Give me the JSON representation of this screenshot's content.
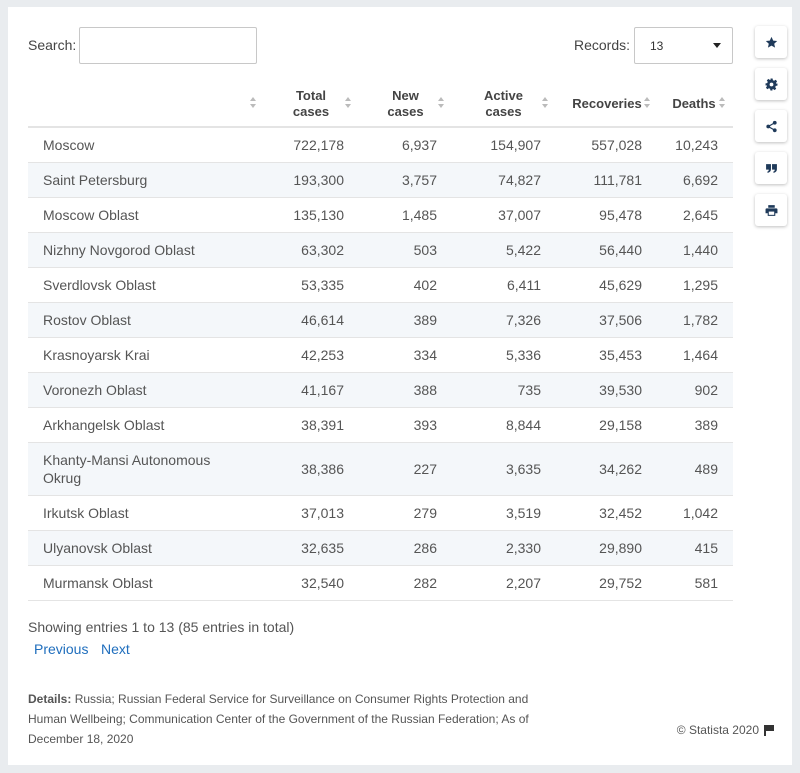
{
  "search": {
    "label": "Search:",
    "value": "",
    "placeholder": ""
  },
  "records": {
    "label": "Records:",
    "value": "13"
  },
  "columns": {
    "region": "",
    "total_cases": "Total cases",
    "new_cases": "New cases",
    "active_cases": "Active cases",
    "recoveries": "Recoveries",
    "deaths": "Deaths"
  },
  "rows": [
    {
      "region": "Moscow",
      "total": "722,178",
      "new": "6,937",
      "active": "154,907",
      "recoveries": "557,028",
      "deaths": "10,243"
    },
    {
      "region": "Saint Petersburg",
      "total": "193,300",
      "new": "3,757",
      "active": "74,827",
      "recoveries": "111,781",
      "deaths": "6,692"
    },
    {
      "region": "Moscow Oblast",
      "total": "135,130",
      "new": "1,485",
      "active": "37,007",
      "recoveries": "95,478",
      "deaths": "2,645"
    },
    {
      "region": "Nizhny Novgorod Oblast",
      "total": "63,302",
      "new": "503",
      "active": "5,422",
      "recoveries": "56,440",
      "deaths": "1,440"
    },
    {
      "region": "Sverdlovsk Oblast",
      "total": "53,335",
      "new": "402",
      "active": "6,411",
      "recoveries": "45,629",
      "deaths": "1,295"
    },
    {
      "region": "Rostov Oblast",
      "total": "46,614",
      "new": "389",
      "active": "7,326",
      "recoveries": "37,506",
      "deaths": "1,782"
    },
    {
      "region": "Krasnoyarsk Krai",
      "total": "42,253",
      "new": "334",
      "active": "5,336",
      "recoveries": "35,453",
      "deaths": "1,464"
    },
    {
      "region": "Voronezh Oblast",
      "total": "41,167",
      "new": "388",
      "active": "735",
      "recoveries": "39,530",
      "deaths": "902"
    },
    {
      "region": "Arkhangelsk Oblast",
      "total": "38,391",
      "new": "393",
      "active": "8,844",
      "recoveries": "29,158",
      "deaths": "389"
    },
    {
      "region": "Khanty-Mansi Autonomous Okrug",
      "total": "38,386",
      "new": "227",
      "active": "3,635",
      "recoveries": "34,262",
      "deaths": "489"
    },
    {
      "region": "Irkutsk Oblast",
      "total": "37,013",
      "new": "279",
      "active": "3,519",
      "recoveries": "32,452",
      "deaths": "1,042"
    },
    {
      "region": "Ulyanovsk Oblast",
      "total": "32,635",
      "new": "286",
      "active": "2,330",
      "recoveries": "29,890",
      "deaths": "415"
    },
    {
      "region": "Murmansk Oblast",
      "total": "32,540",
      "new": "282",
      "active": "2,207",
      "recoveries": "29,752",
      "deaths": "581"
    }
  ],
  "footer": {
    "showing": "Showing entries 1 to 13 (85 entries in total)",
    "previous": "Previous",
    "next": "Next",
    "details_label": "Details:",
    "details_text": "Russia; Russian Federal Service for Surveillance on Consumer Rights Protection and Human Wellbeing; Communication Center of the Government of the Russian Federation; As of December 18, 2020",
    "copyright": "© Statista 2020"
  },
  "sidebar": {
    "icons": [
      "star-icon",
      "gear-icon",
      "share-icon",
      "quote-icon",
      "print-icon"
    ]
  },
  "colors": {
    "link": "#1f6ebd",
    "row_alt": "#f4f7fa",
    "icon": "#1f3a5a"
  }
}
